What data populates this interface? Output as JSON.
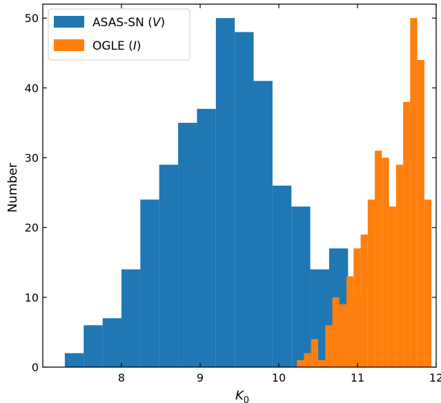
{
  "chart_data": {
    "type": "bar",
    "xlabel": "K",
    "xlabel_subscript": "0",
    "ylabel": "Number",
    "xlim": [
      7.0,
      12.0
    ],
    "ylim": [
      0,
      52
    ],
    "x_ticks": [
      8,
      9,
      10,
      11,
      12
    ],
    "y_ticks": [
      0,
      10,
      20,
      30,
      40,
      50
    ],
    "grid": false,
    "legend_position": "top-left",
    "series": [
      {
        "name": "ASAS-SN (V)",
        "legend_prefix": "ASAS-SN (",
        "legend_italic": "V",
        "legend_suffix": ")",
        "color": "#1f77b4",
        "bin_width": 0.24,
        "bins": [
          {
            "x0": 7.28,
            "value": 2
          },
          {
            "x0": 7.52,
            "value": 6
          },
          {
            "x0": 7.76,
            "value": 7
          },
          {
            "x0": 8.0,
            "value": 14
          },
          {
            "x0": 8.24,
            "value": 24
          },
          {
            "x0": 8.48,
            "value": 29
          },
          {
            "x0": 8.72,
            "value": 35
          },
          {
            "x0": 8.96,
            "value": 37
          },
          {
            "x0": 9.2,
            "value": 50
          },
          {
            "x0": 9.44,
            "value": 48
          },
          {
            "x0": 9.68,
            "value": 41
          },
          {
            "x0": 9.92,
            "value": 26
          },
          {
            "x0": 10.16,
            "value": 23
          },
          {
            "x0": 10.4,
            "value": 14
          },
          {
            "x0": 10.64,
            "value": 17
          },
          {
            "x0": 10.88,
            "value": 10
          }
        ]
      },
      {
        "name": "OGLE (I)",
        "legend_prefix": "OGLE (",
        "legend_italic": "I",
        "legend_suffix": ")",
        "color": "#ff7f0e",
        "bin_width": 0.09,
        "bins": [
          {
            "x0": 10.23,
            "value": 1
          },
          {
            "x0": 10.32,
            "value": 2
          },
          {
            "x0": 10.41,
            "value": 4
          },
          {
            "x0": 10.5,
            "value": 1
          },
          {
            "x0": 10.59,
            "value": 6
          },
          {
            "x0": 10.68,
            "value": 10
          },
          {
            "x0": 10.77,
            "value": 9
          },
          {
            "x0": 10.86,
            "value": 13
          },
          {
            "x0": 10.95,
            "value": 17
          },
          {
            "x0": 11.04,
            "value": 19
          },
          {
            "x0": 11.13,
            "value": 24
          },
          {
            "x0": 11.22,
            "value": 31
          },
          {
            "x0": 11.31,
            "value": 30
          },
          {
            "x0": 11.4,
            "value": 23
          },
          {
            "x0": 11.49,
            "value": 29
          },
          {
            "x0": 11.58,
            "value": 38
          },
          {
            "x0": 11.67,
            "value": 50
          },
          {
            "x0": 11.76,
            "value": 44
          },
          {
            "x0": 11.85,
            "value": 24
          }
        ]
      }
    ]
  }
}
